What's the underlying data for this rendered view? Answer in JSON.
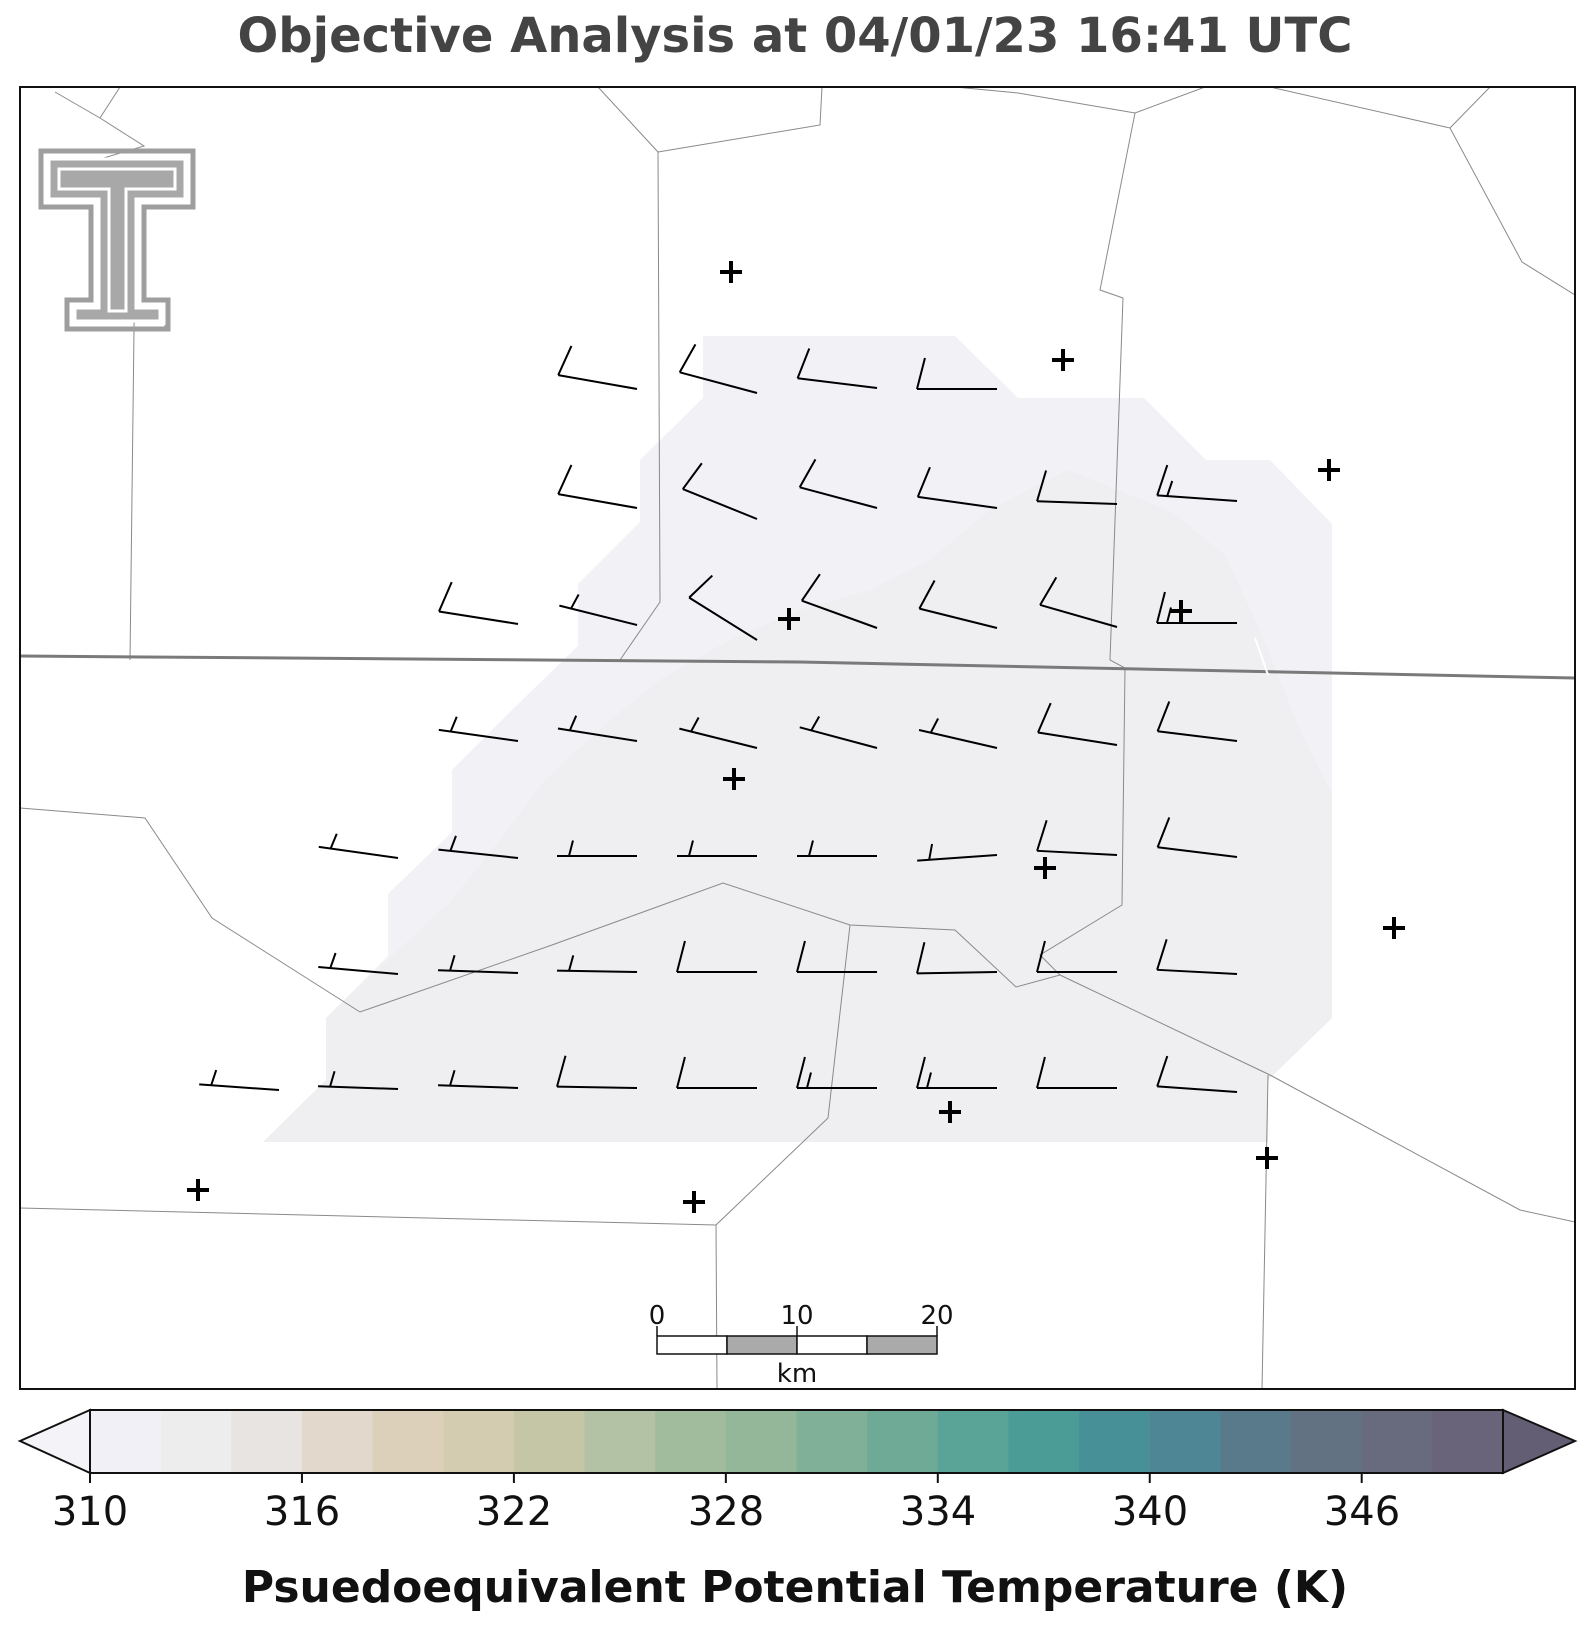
{
  "title": "Objective Analysis at 04/01/23 16:41 UTC",
  "logo": {
    "name": "texas-tech-double-t-logo",
    "color": "#9e9e9e"
  },
  "scale_bar": {
    "tick_labels": [
      "0",
      "10",
      "20"
    ],
    "unit": "km"
  },
  "colorbar": {
    "label": "Psuedoequivalent Potential Temperature (K)",
    "tick_labels": [
      "310",
      "316",
      "322",
      "328",
      "334",
      "340",
      "346"
    ],
    "tick_values": [
      310,
      316,
      322,
      328,
      334,
      340,
      346
    ],
    "range": [
      310,
      350
    ],
    "step": 2,
    "extend": "both",
    "colors": [
      "#f1f0f6",
      "#eeedee",
      "#e8e4e1",
      "#e2d8cc",
      "#ddd0bb",
      "#d3ccb0",
      "#c4c6a5",
      "#b3c2a4",
      "#a0bc9d",
      "#93b798",
      "#80b198",
      "#6faa97",
      "#5aa397",
      "#4b9c97",
      "#489097",
      "#4f8696",
      "#597a8a",
      "#627282",
      "#676b7d",
      "#696479"
    ],
    "under_color": "#f4f3f8",
    "over_color": "#645e75"
  },
  "field_colors": {
    "outer": "#f1f1f6",
    "inner": "#efeef0"
  },
  "station_markers": "plus",
  "wind_barbs": "wind-barbs"
}
